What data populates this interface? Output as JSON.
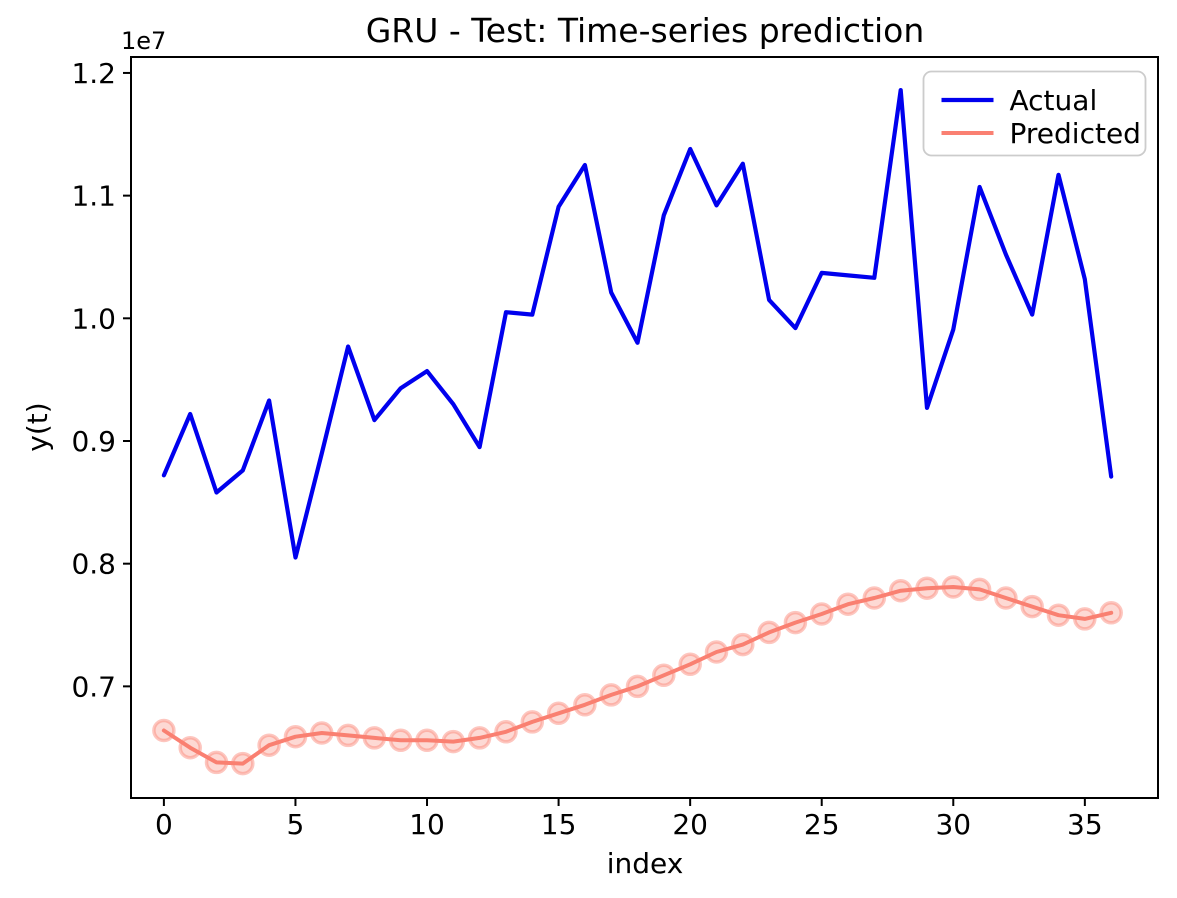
{
  "chart_data": {
    "type": "line",
    "title": "GRU - Test: Time-series prediction",
    "xlabel": "index",
    "ylabel": "y(t)",
    "y_offset_label": "1e7",
    "grid": false,
    "xlim": [
      -1.25,
      37.78
    ],
    "ylim": [
      6090000,
      12130000
    ],
    "xticks": [
      0,
      5,
      10,
      15,
      20,
      25,
      30,
      35
    ],
    "yticks": {
      "values": [
        7000000,
        8000000,
        9000000,
        10000000,
        11000000,
        12000000
      ],
      "labels": [
        "0.7",
        "0.8",
        "0.9",
        "1.0",
        "1.1",
        "1.2"
      ]
    },
    "x": [
      0,
      1,
      2,
      3,
      4,
      5,
      6,
      7,
      8,
      9,
      10,
      11,
      12,
      13,
      14,
      15,
      16,
      17,
      18,
      19,
      20,
      21,
      22,
      23,
      24,
      25,
      26,
      27,
      28,
      29,
      30,
      31,
      32,
      33,
      34,
      35,
      36
    ],
    "series": [
      {
        "name": "Actual",
        "color": "#0000ee",
        "marker": "none",
        "line_width": 4.2,
        "values": [
          8720000,
          9220000,
          8580000,
          8760000,
          9330000,
          8050000,
          8900000,
          9770000,
          9170000,
          9430000,
          9570000,
          9300000,
          8950000,
          10050000,
          10030000,
          10910000,
          11250000,
          10210000,
          9800000,
          10840000,
          11380000,
          10920000,
          11260000,
          10150000,
          9920000,
          10370000,
          10350000,
          10330000,
          11860000,
          9270000,
          9910000,
          11070000,
          10520000,
          10030000,
          11170000,
          10320000,
          8710000
        ]
      },
      {
        "name": "Predicted",
        "color": "#fa8072",
        "marker": "circle",
        "line_width": 4,
        "marker_radius": 10,
        "values": [
          6640000,
          6500000,
          6380000,
          6370000,
          6520000,
          6590000,
          6620000,
          6600000,
          6580000,
          6560000,
          6560000,
          6550000,
          6580000,
          6630000,
          6710000,
          6780000,
          6850000,
          6930000,
          7000000,
          7090000,
          7180000,
          7280000,
          7340000,
          7440000,
          7520000,
          7590000,
          7670000,
          7720000,
          7780000,
          7800000,
          7810000,
          7790000,
          7720000,
          7650000,
          7580000,
          7550000,
          7600000
        ]
      }
    ],
    "legend": {
      "position": "upper right",
      "entries": [
        "Actual",
        "Predicted"
      ],
      "border_color": "#cccccc",
      "background": "#ffffff"
    },
    "axis_color": "#000000"
  }
}
